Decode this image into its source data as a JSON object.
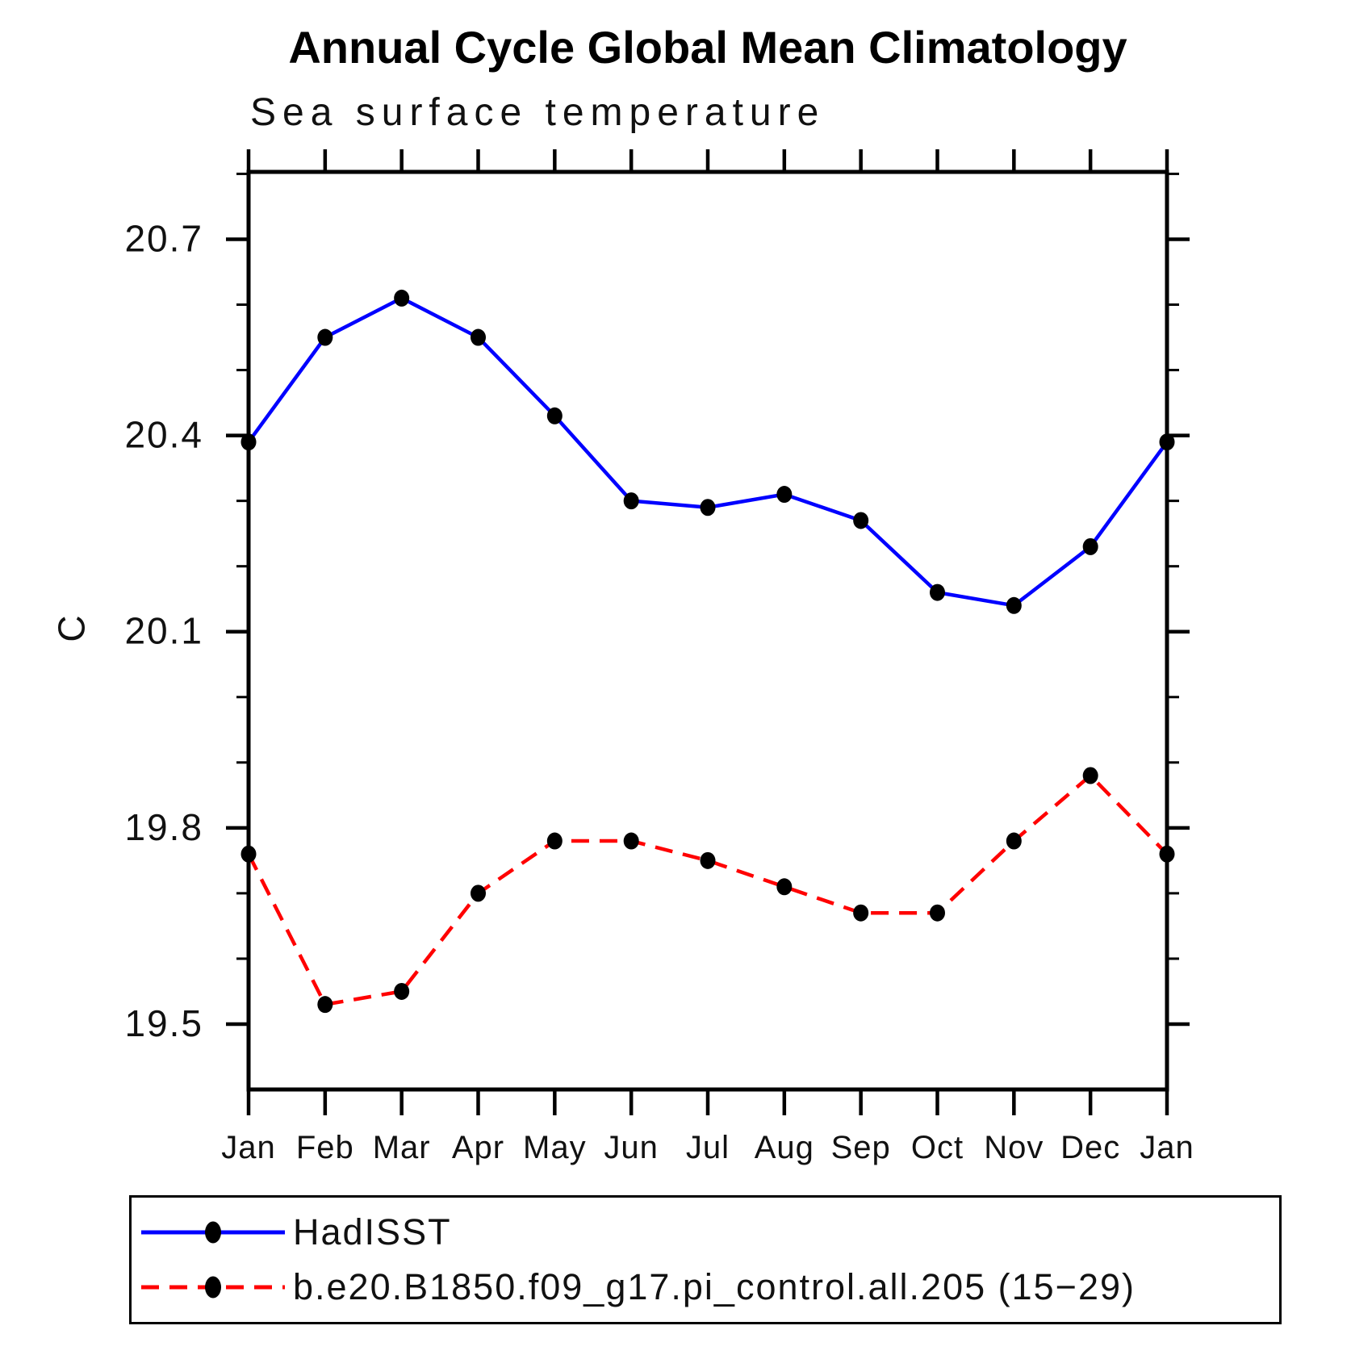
{
  "header": {
    "title": "Annual Cycle Global Mean Climatology",
    "subtitle": "Sea surface temperature"
  },
  "y_axis": {
    "label": "C"
  },
  "chart_data": {
    "type": "line",
    "title": "Annual Cycle Global Mean Climatology",
    "subtitle": "Sea surface temperature",
    "xlabel": "",
    "ylabel": "C",
    "categories": [
      "Jan",
      "Feb",
      "Mar",
      "Apr",
      "May",
      "Jun",
      "Jul",
      "Aug",
      "Sep",
      "Oct",
      "Nov",
      "Dec",
      "Jan"
    ],
    "series": [
      {
        "name": "HadISST",
        "color": "#0000ff",
        "line_style": "solid",
        "marker": "filled-circle",
        "marker_color": "#000000",
        "values": [
          20.39,
          20.55,
          20.61,
          20.55,
          20.43,
          20.3,
          20.29,
          20.31,
          20.27,
          20.16,
          20.14,
          20.23,
          20.39
        ]
      },
      {
        "name": "b.e20.B1850.f09_g17.pi_control.all.205 (15−29)",
        "color": "#ff0000",
        "line_style": "dashed",
        "marker": "filled-circle",
        "marker_color": "#000000",
        "values": [
          19.76,
          19.53,
          19.55,
          19.7,
          19.78,
          19.78,
          19.75,
          19.71,
          19.67,
          19.67,
          19.78,
          19.88,
          19.76
        ]
      }
    ],
    "y_ticks_major": [
      19.5,
      19.8,
      20.1,
      20.4,
      20.7
    ],
    "y_tick_labels": [
      "19.5",
      "19.8",
      "20.1",
      "20.4",
      "20.7"
    ],
    "y_minor_step": 0.1,
    "ylim": [
      19.4,
      20.803
    ],
    "grid": false,
    "frame": true,
    "legend_position": "bottom-left"
  },
  "legend": {
    "items": [
      {
        "label": "HadISST"
      },
      {
        "label": "b.e20.B1850.f09_g17.pi_control.all.205 (15−29)"
      }
    ]
  }
}
